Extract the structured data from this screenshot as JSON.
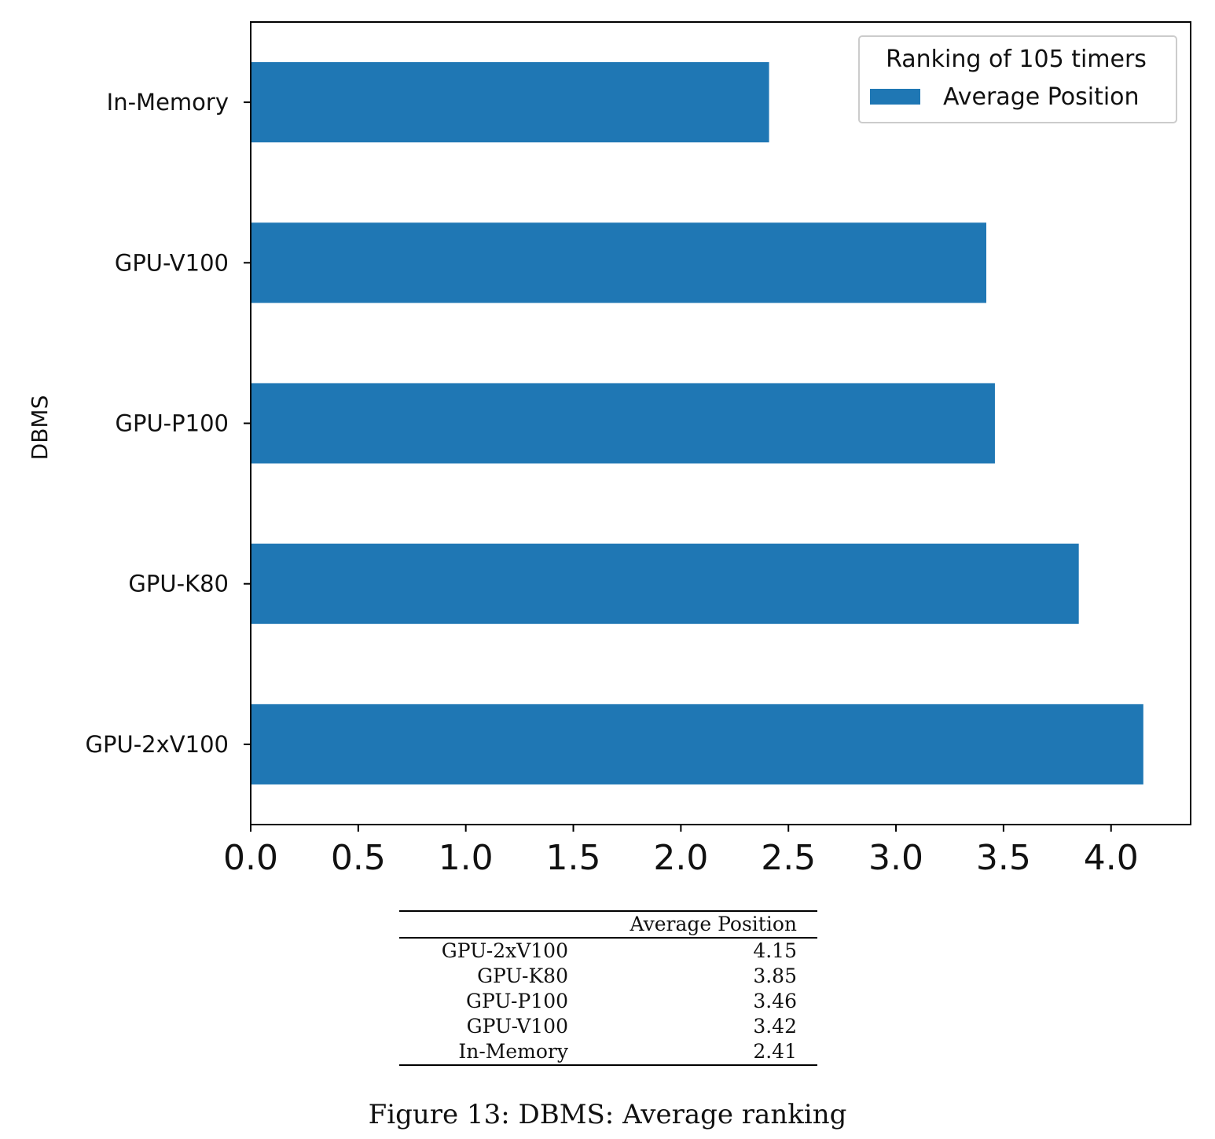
{
  "chart_data": {
    "type": "bar",
    "orientation": "horizontal",
    "categories": [
      "In-Memory",
      "GPU-V100",
      "GPU-P100",
      "GPU-K80",
      "GPU-2xV100"
    ],
    "series": [
      {
        "name": "Average Position",
        "values": [
          2.41,
          3.42,
          3.46,
          3.85,
          4.15
        ]
      }
    ],
    "ylabel": "DBMS",
    "xlabel": "",
    "xlim": [
      0,
      4.37
    ],
    "xticks": [
      "0.0",
      "0.5",
      "1.0",
      "1.5",
      "2.0",
      "2.5",
      "3.0",
      "3.5",
      "4.0"
    ],
    "legend": {
      "title": "Ranking of 105 timers",
      "placement": "top-right"
    },
    "bar_color": "#1f77b4",
    "grid": false
  },
  "table": {
    "header": [
      "",
      "Average Position"
    ],
    "rows": [
      {
        "name": "GPU-2xV100",
        "value": "4.15"
      },
      {
        "name": "GPU-K80",
        "value": "3.85"
      },
      {
        "name": "GPU-P100",
        "value": "3.46"
      },
      {
        "name": "GPU-V100",
        "value": "3.42"
      },
      {
        "name": "In-Memory",
        "value": "2.41"
      }
    ]
  },
  "caption": "Figure 13: DBMS: Average ranking"
}
